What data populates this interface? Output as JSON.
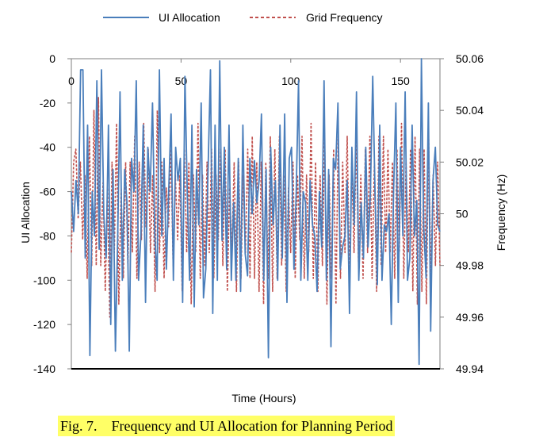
{
  "caption": "Fig. 7.    Frequency and UI Allocation for Planning Period",
  "chart_data": {
    "type": "line",
    "xlabel": "Time (Hours)",
    "ylabel_left": "UI Allocation",
    "ylabel_right": "Frequency (Hz)",
    "xlim": [
      0,
      168
    ],
    "x_ticks": [
      "0",
      "50",
      "100",
      "150"
    ],
    "x_tick_values": [
      0,
      50,
      100,
      150
    ],
    "ylim_left": [
      -140,
      0
    ],
    "y_ticks_left": [
      "0",
      "-20",
      "-40",
      "-60",
      "-80",
      "-100",
      "-120",
      "-140"
    ],
    "y_tick_values_left": [
      0,
      -20,
      -40,
      -60,
      -80,
      -100,
      -120,
      -140
    ],
    "ylim_right": [
      49.94,
      50.06
    ],
    "y_ticks_right": [
      "50.06",
      "50.04",
      "50.02",
      "50",
      "49.98",
      "49.96",
      "49.94"
    ],
    "y_tick_values_right": [
      50.06,
      50.04,
      50.02,
      50,
      49.98,
      49.96,
      49.94
    ],
    "legend_position": "top",
    "grid": false,
    "series": [
      {
        "name": "UI Allocation",
        "axis": "left",
        "color": "#4a7ebb",
        "style": "solid",
        "values": [
          -60,
          -78,
          -55,
          -70,
          -5,
          -5,
          -90,
          -30,
          -134,
          -60,
          -80,
          -10,
          -86,
          -5,
          -70,
          -90,
          -30,
          -120,
          -50,
          -132,
          -80,
          -15,
          -100,
          -50,
          -65,
          -132,
          -45,
          -60,
          -10,
          -100,
          -80,
          -30,
          -110,
          -40,
          -60,
          -20,
          -80,
          -100,
          -5,
          -80,
          -45,
          -95,
          -60,
          -25,
          -100,
          -40,
          -55,
          -45,
          -110,
          -8,
          -60,
          -100,
          -30,
          -112,
          -50,
          -75,
          -20,
          -108,
          -95,
          -50,
          -5,
          -115,
          -30,
          -100,
          -1,
          -82,
          -40,
          -95,
          -30,
          -100,
          -65,
          -100,
          -45,
          -105,
          -30,
          -88,
          -98,
          -45,
          -70,
          -46,
          -65,
          -55,
          -25,
          -100,
          -50,
          -135,
          -40,
          -75,
          -55,
          -100,
          -30,
          -90,
          -25,
          -110,
          -45,
          -40,
          -95,
          -60,
          -10,
          -100,
          -60,
          -65,
          -100,
          -55,
          -75,
          -80,
          -105,
          -60,
          -85,
          -10,
          -100,
          -50,
          -130,
          -45,
          -50,
          -20,
          -95,
          -85,
          -80,
          -55,
          -115,
          -40,
          -75,
          -15,
          -100,
          -65,
          -90,
          -40,
          -85,
          -60,
          -8,
          -60,
          -102,
          -30,
          -100,
          -75,
          -78,
          -70,
          -120,
          -60,
          -20,
          -110,
          -40,
          -80,
          -15,
          -100,
          -90,
          -30,
          -80,
          -64,
          -138,
          0,
          -76,
          -99,
          -20,
          -123,
          -55,
          -40,
          -75,
          -78
        ]
      },
      {
        "name": "Grid Frequency",
        "axis": "right",
        "color": "#c0504d",
        "style": "dashed",
        "values": [
          49.985,
          50.02,
          50.025,
          49.998,
          50.02,
          49.99,
          50.015,
          49.975,
          50.03,
          49.98,
          50.04,
          49.98,
          50.045,
          49.98,
          50.012,
          49.97,
          50.01,
          49.96,
          50.02,
          49.985,
          50.035,
          49.965,
          50.01,
          49.975,
          50.02,
          49.98,
          50.02,
          49.985,
          50.03,
          49.975,
          50.02,
          49.99,
          50.035,
          49.995,
          50.025,
          49.985,
          50.015,
          49.97,
          50.04,
          49.985,
          50.02,
          49.975,
          50.01,
          49.995,
          50.025,
          49.98,
          50.015,
          49.99,
          50.015,
          49.97,
          50.025,
          49.985,
          50.02,
          49.965,
          50.015,
          49.985,
          50.035,
          49.975,
          50.015,
          49.98,
          50.02,
          49.985,
          50.025,
          49.975,
          50.015,
          49.99,
          50.025,
          49.98,
          50.025,
          49.97,
          50.01,
          49.985,
          50.02,
          49.97,
          50.02,
          49.975,
          50.015,
          49.985,
          50.025,
          49.975,
          50.03,
          49.975,
          50.02,
          49.97,
          50.02,
          49.965,
          50.02,
          49.975,
          50.03,
          49.97,
          50.025,
          49.975,
          50.03,
          49.98,
          50.015,
          49.97,
          50.01,
          49.985,
          50.02,
          49.975,
          50.015,
          49.99,
          50.03,
          49.975,
          50.015,
          49.985,
          50.035,
          49.975,
          50.02,
          49.97,
          50.015,
          49.98,
          50.03,
          49.965,
          50.015,
          49.975,
          50.025,
          49.965,
          50.03,
          49.975,
          50.02,
          49.985,
          50.03,
          49.975,
          50.02,
          49.985,
          50.03,
          49.98,
          50.015,
          49.975,
          50.025,
          49.985,
          50.03,
          49.975,
          50.02,
          49.97,
          50.03,
          49.98,
          50.03,
          49.985,
          50.025,
          49.985,
          50.02,
          49.975,
          50.025,
          49.985,
          50.035,
          49.975,
          50.02,
          49.985,
          50.025,
          49.97,
          50.03,
          49.965,
          50.025,
          49.97,
          50.025,
          49.965,
          50.03,
          49.975,
          50.015,
          49.98,
          50.02,
          49.98
        ]
      }
    ]
  }
}
